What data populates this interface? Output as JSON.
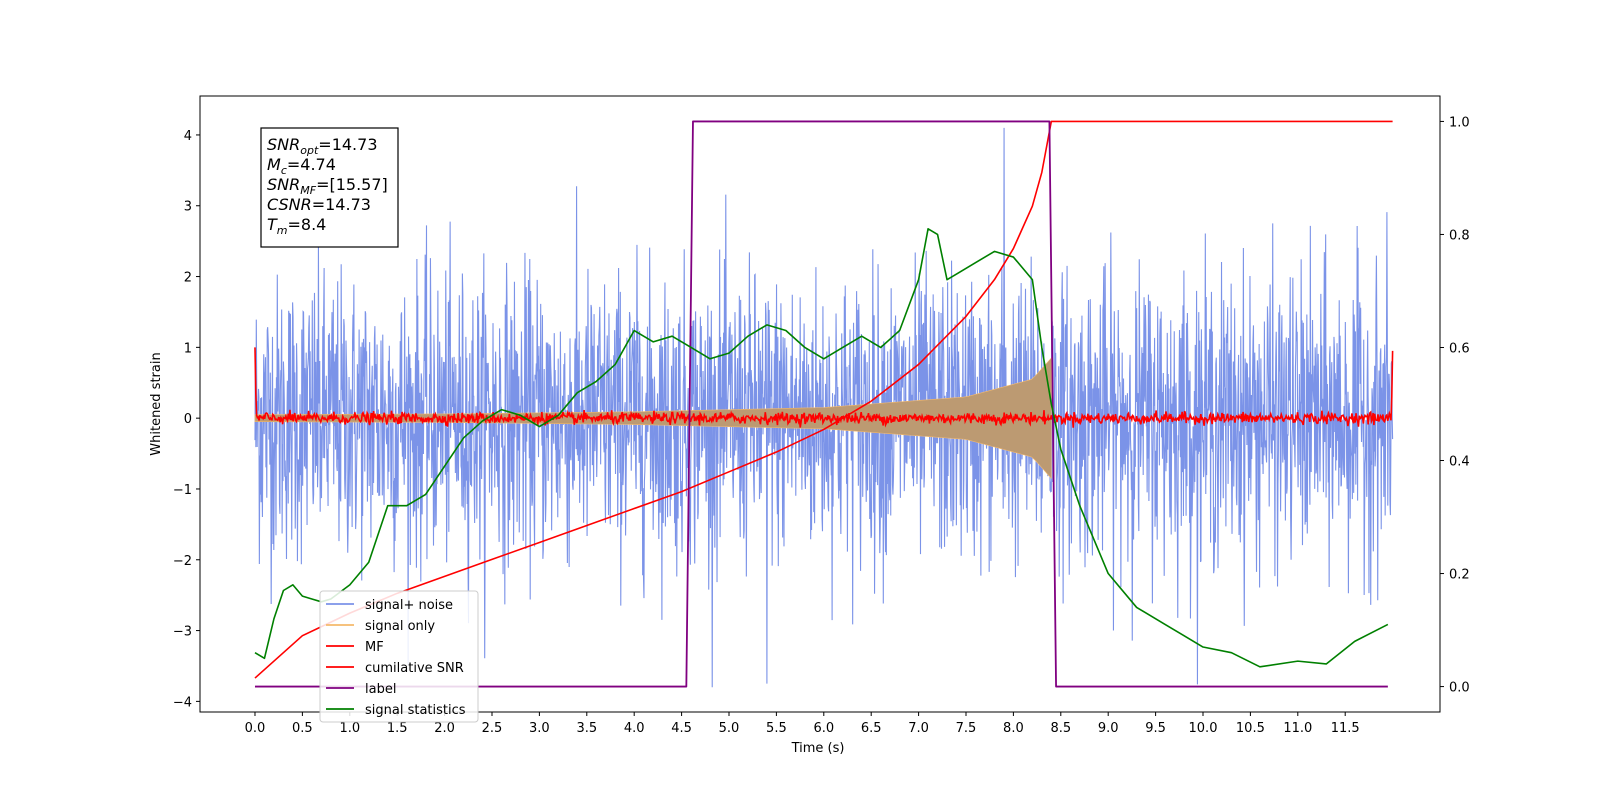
{
  "chart_data": {
    "type": "line",
    "title": "",
    "xlabel": "Time (s)",
    "ylabel": "Whitened strain",
    "ylabel_right": "",
    "xlim": [
      -0.58,
      12.5
    ],
    "ylim": [
      -4.15,
      4.55
    ],
    "ylim_right": [
      -0.045,
      1.045
    ],
    "xticks": [
      "0.0",
      "0.5",
      "1.0",
      "1.5",
      "2.0",
      "2.5",
      "3.0",
      "3.5",
      "4.0",
      "4.5",
      "5.0",
      "5.5",
      "6.0",
      "6.5",
      "7.0",
      "7.5",
      "8.0",
      "8.5",
      "9.0",
      "9.5",
      "10.0",
      "10.5",
      "11.0",
      "11.5"
    ],
    "yticks": [
      "4",
      "3",
      "2",
      "1",
      "0",
      "−1",
      "−2",
      "−3",
      "−4"
    ],
    "yticks_right": [
      "1.0",
      "0.8",
      "0.6",
      "0.4",
      "0.2",
      "0.0"
    ],
    "grid": false,
    "legend_position": "bottom-left",
    "annotation_lines": [
      {
        "sym": "SNR",
        "sub": "opt",
        "val": "=14.73"
      },
      {
        "sym": "M",
        "sub": "c",
        "val": "=4.74"
      },
      {
        "sym": "SNR",
        "sub": "MF",
        "val": "=[15.57]"
      },
      {
        "sym": "CSNR",
        "sub": "",
        "val": "=14.73"
      },
      {
        "sym": "T",
        "sub": "m",
        "val": "=8.4"
      }
    ],
    "series": [
      {
        "name": "signal+ noise",
        "color": "#7b93e8",
        "axis": "left",
        "description_values": {
          "x_range": [
            0.0,
            12.0
          ],
          "noise_std": 1.0,
          "peak_max": 4.1,
          "peak_min": -3.75
        }
      },
      {
        "name": "signal only",
        "color": "#f5b96b",
        "fill": "#bc9a72",
        "axis": "left",
        "envelope": {
          "x": [
            0.0,
            2.0,
            4.0,
            6.0,
            7.5,
            8.2,
            8.4
          ],
          "amplitude": [
            0.05,
            0.06,
            0.09,
            0.15,
            0.3,
            0.55,
            0.85
          ]
        }
      },
      {
        "name": "MF",
        "color": "#ff0000",
        "axis": "left",
        "description_values": {
          "x_range": [
            0.0,
            12.0
          ],
          "noise_std": 0.04,
          "start_value": 1.0,
          "end_value": 0.95
        }
      },
      {
        "name": "cumilative SNR",
        "color": "#ff0000",
        "axis": "right",
        "x": [
          0.0,
          0.5,
          1.0,
          1.5,
          2.0,
          2.5,
          3.0,
          3.5,
          4.0,
          4.5,
          5.0,
          5.5,
          6.0,
          6.5,
          7.0,
          7.5,
          7.8,
          8.0,
          8.2,
          8.3,
          8.4,
          12.0
        ],
        "y": [
          0.015,
          0.09,
          0.13,
          0.165,
          0.195,
          0.225,
          0.255,
          0.285,
          0.315,
          0.345,
          0.38,
          0.415,
          0.455,
          0.505,
          0.57,
          0.655,
          0.72,
          0.775,
          0.85,
          0.91,
          1.0,
          1.0
        ]
      },
      {
        "name": "label",
        "color": "#800080",
        "axis": "right",
        "x": [
          0.0,
          4.55,
          4.62,
          8.38,
          8.45,
          11.95
        ],
        "y": [
          0.0,
          0.0,
          1.0,
          1.0,
          0.0,
          0.0
        ]
      },
      {
        "name": "signal statistics",
        "color": "#008000",
        "axis": "right",
        "x": [
          0.0,
          0.1,
          0.2,
          0.3,
          0.4,
          0.5,
          0.6,
          0.7,
          0.8,
          1.0,
          1.2,
          1.4,
          1.6,
          1.8,
          2.0,
          2.2,
          2.4,
          2.6,
          2.8,
          3.0,
          3.2,
          3.4,
          3.6,
          3.8,
          4.0,
          4.2,
          4.4,
          4.6,
          4.8,
          5.0,
          5.2,
          5.4,
          5.6,
          5.8,
          6.0,
          6.2,
          6.4,
          6.6,
          6.8,
          7.0,
          7.1,
          7.2,
          7.3,
          7.4,
          7.6,
          7.8,
          8.0,
          8.2,
          8.3,
          8.4,
          8.5,
          8.7,
          9.0,
          9.3,
          9.6,
          10.0,
          10.3,
          10.6,
          11.0,
          11.3,
          11.6,
          11.95
        ],
        "y": [
          0.06,
          0.05,
          0.12,
          0.17,
          0.18,
          0.16,
          0.155,
          0.15,
          0.155,
          0.18,
          0.22,
          0.32,
          0.32,
          0.34,
          0.39,
          0.44,
          0.47,
          0.49,
          0.48,
          0.46,
          0.48,
          0.52,
          0.54,
          0.57,
          0.63,
          0.61,
          0.62,
          0.6,
          0.58,
          0.59,
          0.62,
          0.64,
          0.63,
          0.6,
          0.58,
          0.6,
          0.62,
          0.6,
          0.63,
          0.72,
          0.81,
          0.8,
          0.72,
          0.73,
          0.75,
          0.77,
          0.76,
          0.72,
          0.6,
          0.5,
          0.42,
          0.32,
          0.2,
          0.14,
          0.11,
          0.07,
          0.06,
          0.035,
          0.045,
          0.04,
          0.08,
          0.11
        ]
      }
    ]
  }
}
